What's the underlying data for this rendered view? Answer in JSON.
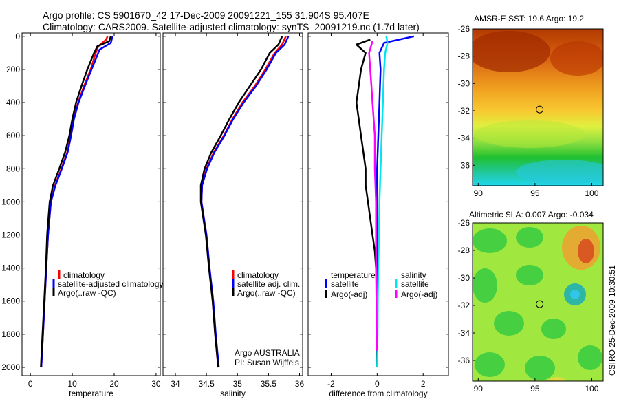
{
  "header": {
    "line1": "Argo profile: CS 5901670_42 17-Dec-2009 20091221_155 31.904S 95.407E",
    "line2": "Climatology: CARS2009. Satellite-adjusted climatology: synTS_20091219.nc (1.7d later)"
  },
  "credits": {
    "agency": "Argo AUSTRALIA",
    "pi": "PI: Susan Wijffels",
    "stamp": "CSIRO 25-Dec-2009 10:30:51"
  },
  "colors": {
    "climatology": "#ff0000",
    "satellite": "#0000ff",
    "argo": "#000000",
    "sal_satellite": "#00e5ee",
    "sal_argo": "#ff00ff"
  },
  "chart_data": [
    {
      "id": "temperature",
      "type": "line",
      "xlabel": "temperature",
      "ylabel": "",
      "xlim": [
        -2,
        31
      ],
      "ylim": [
        2050,
        -20
      ],
      "xticks": [
        0,
        10,
        20,
        30
      ],
      "yticks": [
        0,
        200,
        400,
        600,
        800,
        1000,
        1200,
        1400,
        1600,
        1800,
        2000
      ],
      "legend": [
        "climatology",
        "satellite-adjusted climatology",
        "Argo(..raw -QC)"
      ],
      "series": [
        {
          "name": "climatology",
          "color": "#ff0000",
          "points": [
            [
              18.4,
              0
            ],
            [
              18.1,
              20
            ],
            [
              16.2,
              60
            ],
            [
              15.6,
              100
            ],
            [
              14.4,
              200
            ],
            [
              12.8,
              300
            ],
            [
              11.4,
              400
            ],
            [
              10.3,
              500
            ],
            [
              9.6,
              600
            ],
            [
              8.8,
              700
            ],
            [
              7.4,
              800
            ],
            [
              5.9,
              900
            ],
            [
              4.9,
              1000
            ],
            [
              4.2,
              1200
            ],
            [
              3.8,
              1400
            ],
            [
              3.4,
              1600
            ],
            [
              3.0,
              1800
            ],
            [
              2.6,
              2000
            ]
          ]
        },
        {
          "name": "satellite",
          "color": "#0000ff",
          "points": [
            [
              19.6,
              0
            ],
            [
              19.2,
              40
            ],
            [
              16.5,
              80
            ],
            [
              15.9,
              120
            ],
            [
              14.6,
              200
            ],
            [
              13.0,
              300
            ],
            [
              11.5,
              400
            ],
            [
              10.4,
              500
            ],
            [
              9.7,
              600
            ],
            [
              8.9,
              700
            ],
            [
              7.5,
              800
            ],
            [
              6.0,
              900
            ],
            [
              4.9,
              1000
            ],
            [
              4.2,
              1200
            ],
            [
              3.8,
              1400
            ],
            [
              3.4,
              1600
            ],
            [
              3.0,
              1800
            ],
            [
              2.6,
              2000
            ]
          ]
        },
        {
          "name": "Argo(..raw -QC)",
          "color": "#000000",
          "points": [
            [
              19.2,
              0
            ],
            [
              18.8,
              30
            ],
            [
              16.0,
              60
            ],
            [
              15.2,
              100
            ],
            [
              13.6,
              200
            ],
            [
              12.2,
              300
            ],
            [
              10.9,
              400
            ],
            [
              10.0,
              500
            ],
            [
              9.3,
              600
            ],
            [
              8.3,
              700
            ],
            [
              6.9,
              800
            ],
            [
              5.4,
              900
            ],
            [
              4.6,
              1000
            ],
            [
              4.0,
              1200
            ],
            [
              3.7,
              1400
            ],
            [
              3.3,
              1600
            ],
            [
              2.9,
              1800
            ],
            [
              2.5,
              2000
            ]
          ]
        }
      ]
    },
    {
      "id": "salinity",
      "type": "line",
      "xlabel": "salinity",
      "ylabel": "",
      "xlim": [
        33.8,
        36.05
      ],
      "ylim": [
        2050,
        -20
      ],
      "xticks": [
        34,
        34.5,
        35,
        35.5,
        36
      ],
      "yticks": [
        0,
        200,
        400,
        600,
        800,
        1000,
        1200,
        1400,
        1600,
        1800,
        2000
      ],
      "legend": [
        "climatology",
        "satellite adj. clim.",
        "Argo(..raw -QC)"
      ],
      "series": [
        {
          "name": "climatology",
          "color": "#ff0000",
          "points": [
            [
              35.78,
              0
            ],
            [
              35.72,
              50
            ],
            [
              35.6,
              100
            ],
            [
              35.45,
              200
            ],
            [
              35.28,
              300
            ],
            [
              35.08,
              400
            ],
            [
              34.92,
              500
            ],
            [
              34.78,
              600
            ],
            [
              34.62,
              700
            ],
            [
              34.5,
              800
            ],
            [
              34.43,
              900
            ],
            [
              34.42,
              1000
            ],
            [
              34.46,
              1100
            ],
            [
              34.5,
              1200
            ],
            [
              34.55,
              1400
            ],
            [
              34.6,
              1600
            ],
            [
              34.64,
              1800
            ],
            [
              34.69,
              2000
            ]
          ]
        },
        {
          "name": "satellite adj. clim.",
          "color": "#0000ff",
          "points": [
            [
              35.82,
              0
            ],
            [
              35.76,
              50
            ],
            [
              35.62,
              100
            ],
            [
              35.47,
              200
            ],
            [
              35.3,
              300
            ],
            [
              35.1,
              400
            ],
            [
              34.93,
              500
            ],
            [
              34.79,
              600
            ],
            [
              34.63,
              700
            ],
            [
              34.51,
              800
            ],
            [
              34.43,
              900
            ],
            [
              34.42,
              1000
            ],
            [
              34.46,
              1100
            ],
            [
              34.5,
              1200
            ],
            [
              34.55,
              1400
            ],
            [
              34.61,
              1600
            ],
            [
              34.65,
              1800
            ],
            [
              34.7,
              2000
            ]
          ]
        },
        {
          "name": "Argo(..raw -QC)",
          "color": "#000000",
          "points": [
            [
              35.72,
              0
            ],
            [
              35.66,
              50
            ],
            [
              35.52,
              100
            ],
            [
              35.38,
              200
            ],
            [
              35.2,
              300
            ],
            [
              35.02,
              400
            ],
            [
              34.87,
              500
            ],
            [
              34.73,
              600
            ],
            [
              34.58,
              700
            ],
            [
              34.47,
              800
            ],
            [
              34.41,
              900
            ],
            [
              34.41,
              1000
            ],
            [
              34.45,
              1100
            ],
            [
              34.49,
              1200
            ],
            [
              34.54,
              1400
            ],
            [
              34.6,
              1600
            ],
            [
              34.64,
              1800
            ],
            [
              34.69,
              2000
            ]
          ]
        }
      ]
    },
    {
      "id": "difference",
      "type": "line",
      "xlabel": "difference from climatology",
      "ylabel": "",
      "xlim": [
        -3,
        3.1
      ],
      "ylim": [
        2050,
        -20
      ],
      "xticks": [
        -2,
        0,
        2
      ],
      "yticks": [
        0,
        200,
        400,
        600,
        800,
        1000,
        1200,
        1400,
        1600,
        1800,
        2000
      ],
      "legend_groups": [
        {
          "title": "temperature",
          "items": [
            "satellite",
            "Argo(-adj)"
          ]
        },
        {
          "title": "salinity",
          "items": [
            "satellite",
            "Argo(-adj)"
          ]
        }
      ],
      "series": [
        {
          "name": "temperature satellite",
          "color": "#0000ff",
          "points": [
            [
              1.6,
              0
            ],
            [
              0.3,
              40
            ],
            [
              0.1,
              100
            ],
            [
              0.15,
              200
            ],
            [
              0.1,
              400
            ],
            [
              0.05,
              600
            ],
            [
              0.0,
              800
            ],
            [
              0.0,
              1000
            ],
            [
              0.0,
              1200
            ],
            [
              0.0,
              1400
            ],
            [
              0.0,
              1600
            ],
            [
              0.0,
              1800
            ],
            [
              0.0,
              2000
            ]
          ]
        },
        {
          "name": "temperature Argo(-adj)",
          "color": "#000000",
          "points": [
            [
              -0.3,
              20
            ],
            [
              -0.9,
              50
            ],
            [
              -0.5,
              100
            ],
            [
              -0.7,
              200
            ],
            [
              -0.8,
              300
            ],
            [
              -0.9,
              400
            ],
            [
              -0.8,
              500
            ],
            [
              -0.7,
              600
            ],
            [
              -0.6,
              700
            ],
            [
              -0.5,
              800
            ],
            [
              -0.5,
              900
            ],
            [
              -0.4,
              1000
            ],
            [
              -0.3,
              1100
            ],
            [
              -0.2,
              1200
            ],
            [
              -0.1,
              1300
            ],
            [
              -0.05,
              1400
            ],
            [
              0.0,
              1600
            ],
            [
              0.0,
              1800
            ],
            [
              0.0,
              2000
            ]
          ]
        },
        {
          "name": "salinity satellite",
          "color": "#00e5ee",
          "points": [
            [
              0.4,
              0
            ],
            [
              0.45,
              40
            ],
            [
              0.35,
              100
            ],
            [
              0.3,
              200
            ],
            [
              0.25,
              400
            ],
            [
              0.2,
              600
            ],
            [
              0.15,
              800
            ],
            [
              0.1,
              1000
            ],
            [
              0.08,
              1200
            ],
            [
              0.05,
              1400
            ],
            [
              0.03,
              1600
            ],
            [
              0.02,
              1800
            ],
            [
              0.0,
              2000
            ]
          ]
        },
        {
          "name": "salinity Argo(-adj)",
          "color": "#ff00ff",
          "points": [
            [
              -0.2,
              30
            ],
            [
              -0.35,
              100
            ],
            [
              -0.3,
              200
            ],
            [
              -0.25,
              300
            ],
            [
              -0.2,
              400
            ],
            [
              -0.15,
              500
            ],
            [
              -0.1,
              600
            ],
            [
              -0.1,
              800
            ],
            [
              -0.05,
              1000
            ],
            [
              -0.05,
              1200
            ],
            [
              -0.05,
              1400
            ],
            [
              -0.03,
              1600
            ],
            [
              -0.02,
              1800
            ],
            [
              0.0,
              1900
            ]
          ]
        }
      ]
    },
    {
      "id": "amsre_sst_map",
      "type": "heatmap",
      "title": "AMSR-E SST: 19.6 Argo: 19.2",
      "xlim": [
        89.5,
        101
      ],
      "ylim": [
        -37.5,
        -26
      ],
      "xticks": [
        90,
        95,
        100
      ],
      "yticks": [
        -26,
        -28,
        -30,
        -32,
        -34,
        -36
      ],
      "marker": {
        "lon": 95.407,
        "lat": -31.904
      }
    },
    {
      "id": "altimetric_sla_map",
      "type": "heatmap",
      "title": "Altimetric SLA: 0.007 Argo: -0.034",
      "xlim": [
        89.5,
        101
      ],
      "ylim": [
        -37.5,
        -26
      ],
      "xticks": [
        90,
        95,
        100
      ],
      "yticks": [
        -26,
        -28,
        -30,
        -32,
        -34,
        -36
      ],
      "marker": {
        "lon": 95.407,
        "lat": -31.904
      }
    }
  ]
}
